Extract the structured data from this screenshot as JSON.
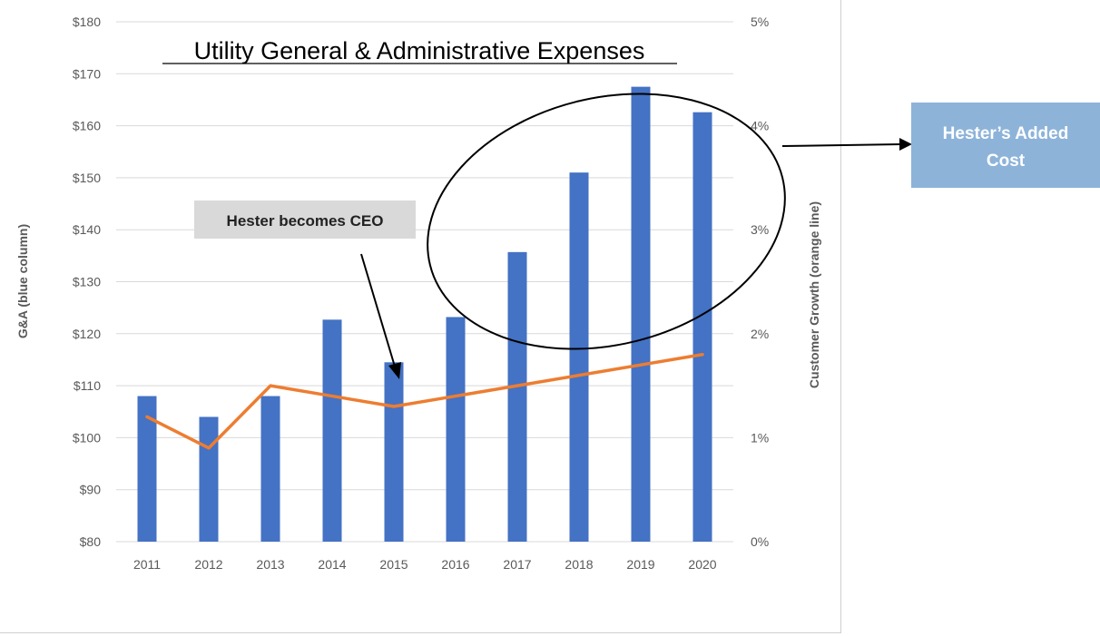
{
  "chart_data": {
    "type": "bar",
    "title": "Utility General & Administrative Expenses",
    "categories": [
      "2011",
      "2012",
      "2013",
      "2014",
      "2015",
      "2016",
      "2017",
      "2018",
      "2019",
      "2020"
    ],
    "series": [
      {
        "name": "G&A",
        "type": "bar",
        "axis": "left",
        "values": [
          108,
          104,
          108,
          122.7,
          114.5,
          123.2,
          135.7,
          151,
          167.5,
          162.6
        ]
      },
      {
        "name": "Customer Growth",
        "type": "line",
        "axis": "right",
        "values": [
          1.2,
          0.9,
          1.5,
          1.4,
          1.3,
          1.4,
          1.5,
          1.6,
          1.7,
          1.8
        ]
      }
    ],
    "ylabel": "G&A (blue column)",
    "y2label": "Customer Growth (orange line)",
    "ylim": [
      80,
      180
    ],
    "y2lim": [
      0,
      5
    ],
    "yticks": [
      "$80",
      "$90",
      "$100",
      "$110",
      "$120",
      "$130",
      "$140",
      "$150",
      "$160",
      "$170",
      "$180"
    ],
    "y2ticks": [
      "0%",
      "1%",
      "2%",
      "3%",
      "4%",
      "5%"
    ],
    "grid": true,
    "legend": "none",
    "colors": {
      "bar": "#4472c4",
      "line": "#ed7d31"
    },
    "annotations": [
      {
        "text": "Hester becomes CEO",
        "target_category": "2015"
      },
      {
        "text": "Hester's Added Cost",
        "lines": [
          "Hester’s Added",
          "Cost"
        ],
        "target_categories": [
          "2017",
          "2018",
          "2019",
          "2020"
        ]
      }
    ]
  }
}
